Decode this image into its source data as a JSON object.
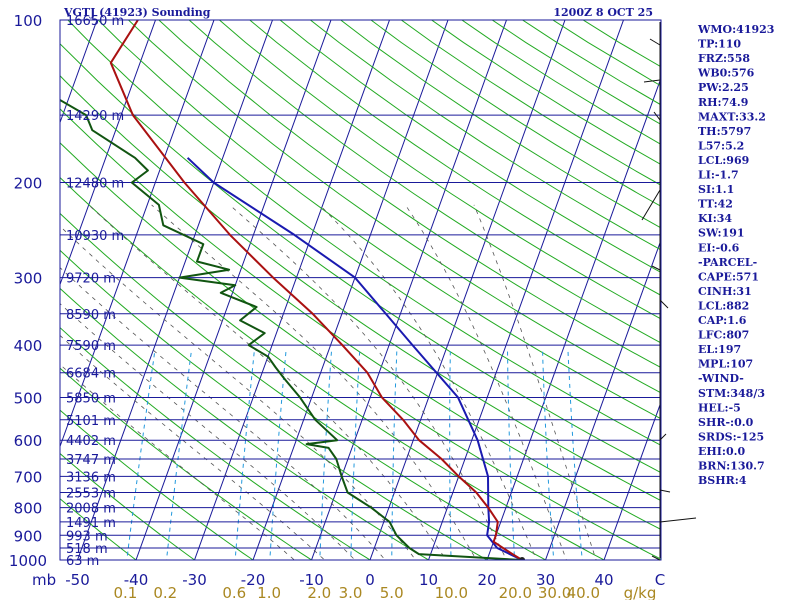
{
  "chart_data": {
    "type": "skew-t",
    "title": "VGTJ (41923) Sounding",
    "valid": "1200Z  8 OCT 25",
    "pressure_labels": [
      "100",
      "200",
      "300",
      "400",
      "500",
      "600",
      "700",
      "800",
      "900",
      "1000"
    ],
    "pressure_values": [
      100,
      200,
      300,
      400,
      500,
      600,
      700,
      800,
      900,
      1000
    ],
    "height_labels": [
      {
        "p": 100,
        "text": "16650 m"
      },
      {
        "p": 150,
        "text": "14290 m"
      },
      {
        "p": 200,
        "text": "12480 m"
      },
      {
        "p": 250,
        "text": "10930 m"
      },
      {
        "p": 300,
        "text": "9720 m"
      },
      {
        "p": 350,
        "text": "8590 m"
      },
      {
        "p": 400,
        "text": "7590 m"
      },
      {
        "p": 450,
        "text": "6684 m"
      },
      {
        "p": 500,
        "text": "5850 m"
      },
      {
        "p": 550,
        "text": "5101 m"
      },
      {
        "p": 600,
        "text": "4402 m"
      },
      {
        "p": 650,
        "text": "3747 m"
      },
      {
        "p": 700,
        "text": "3136 m"
      },
      {
        "p": 750,
        "text": "2553 m"
      },
      {
        "p": 800,
        "text": "2008 m"
      },
      {
        "p": 850,
        "text": "1491 m"
      },
      {
        "p": 900,
        "text": "993 m"
      },
      {
        "p": 950,
        "text": "518 m"
      },
      {
        "p": 1000,
        "text": "63 m"
      }
    ],
    "x_unit_label": "mb",
    "temp_ticks": [
      "-50",
      "-40",
      "-30",
      "-20",
      "-10",
      "0",
      "10",
      "20",
      "30",
      "40"
    ],
    "temp_tick_values": [
      -50,
      -40,
      -30,
      -20,
      -10,
      0,
      10,
      20,
      30,
      40
    ],
    "corner_label": "C",
    "mixing_labels": [
      {
        "w": 0.1,
        "text": "0.1"
      },
      {
        "w": 0.2,
        "text": "0.2"
      },
      {
        "w": 0.6,
        "text": "0.6"
      },
      {
        "w": 1.0,
        "text": "1.0"
      },
      {
        "w": 2.0,
        "text": "2.0"
      },
      {
        "w": 3.0,
        "text": "3.0"
      },
      {
        "w": 5.0,
        "text": "5.0"
      },
      {
        "w": 10.0,
        "text": "10.0"
      },
      {
        "w": 20.0,
        "text": "20.0"
      },
      {
        "w": 30.0,
        "text": "30.0"
      },
      {
        "w": 40.0,
        "text": "40.0"
      }
    ],
    "mixing_unit": "g/kg",
    "temperature": [
      [
        1000,
        26
      ],
      [
        975,
        24
      ],
      [
        950,
        22
      ],
      [
        925,
        20
      ],
      [
        900,
        20
      ],
      [
        850,
        19.5
      ],
      [
        800,
        17
      ],
      [
        750,
        14
      ],
      [
        700,
        10
      ],
      [
        650,
        6
      ],
      [
        600,
        1
      ],
      [
        550,
        -3
      ],
      [
        500,
        -8
      ],
      [
        450,
        -12
      ],
      [
        400,
        -18
      ],
      [
        350,
        -25
      ],
      [
        300,
        -34
      ],
      [
        250,
        -44
      ],
      [
        200,
        -55
      ],
      [
        150,
        -68
      ],
      [
        120,
        -75
      ],
      [
        100,
        -73
      ]
    ],
    "dewpoint": [
      [
        1000,
        26
      ],
      [
        975,
        8
      ],
      [
        950,
        6
      ],
      [
        900,
        3
      ],
      [
        850,
        1
      ],
      [
        800,
        -3
      ],
      [
        750,
        -8
      ],
      [
        700,
        -10
      ],
      [
        650,
        -12
      ],
      [
        620,
        -14
      ],
      [
        610,
        -18
      ],
      [
        600,
        -13
      ],
      [
        550,
        -18
      ],
      [
        500,
        -22
      ],
      [
        460,
        -26
      ],
      [
        440,
        -28
      ],
      [
        420,
        -30
      ],
      [
        400,
        -34
      ],
      [
        380,
        -32
      ],
      [
        360,
        -37
      ],
      [
        340,
        -35
      ],
      [
        320,
        -42
      ],
      [
        310,
        -40
      ],
      [
        300,
        -50
      ],
      [
        290,
        -42
      ],
      [
        280,
        -48
      ],
      [
        260,
        -48
      ],
      [
        240,
        -56
      ],
      [
        220,
        -58
      ],
      [
        200,
        -64
      ],
      [
        190,
        -62
      ],
      [
        180,
        -65
      ],
      [
        160,
        -74
      ],
      [
        150,
        -76
      ],
      [
        130,
        -88
      ],
      [
        120,
        -95
      ],
      [
        100,
        -104
      ]
    ],
    "parcel": [
      [
        1000,
        26
      ],
      [
        950,
        21
      ],
      [
        900,
        18.5
      ],
      [
        850,
        18
      ],
      [
        800,
        17
      ],
      [
        700,
        15
      ],
      [
        600,
        11
      ],
      [
        500,
        5
      ],
      [
        400,
        -6
      ],
      [
        300,
        -20
      ],
      [
        250,
        -33
      ],
      [
        200,
        -50
      ],
      [
        180,
        -56
      ]
    ],
    "station_indices": [
      "WMO:41923",
      "TP:110",
      "FRZ:558",
      "WB0:576",
      "PW:2.25",
      "RH:74.9",
      "MAXT:33.2",
      "TH:5797",
      "L57:5.2",
      "LCL:969",
      "LI:-1.7",
      "SI:1.1",
      "TT:42",
      "KI:34",
      "SW:191",
      "EI:-0.6",
      "-PARCEL-",
      "CAPE:571",
      "CINH:31",
      "LCL:882",
      "CAP:1.6",
      "LFC:807",
      "EL:197",
      "MPL:107",
      "-WIND-",
      "STM:348/3",
      "HEL:-5",
      "SHR-:0.0",
      "SRDS:-125",
      "EHI:0.0",
      "BRN:130.7",
      "BSHR:4"
    ],
    "colors": {
      "isobar": "#1a1a9a",
      "isotherm": "#1a1a9a",
      "dry_adiabat": "#22aa22",
      "mixing_ratio": "#2299dd",
      "moist_adiabat": "#555555",
      "temperature": "#aa1111",
      "dewpoint": "#115511",
      "parcel": "#1a1ab0",
      "labels": "#1a1a9a",
      "mixing_labels": "#aa8822"
    }
  }
}
